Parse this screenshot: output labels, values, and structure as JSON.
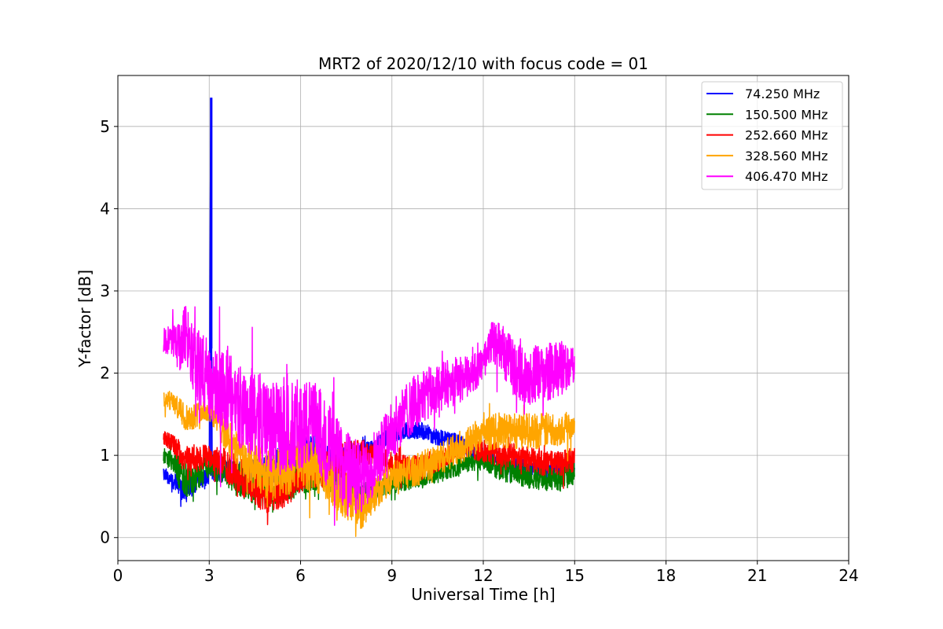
{
  "chart_data": {
    "type": "line",
    "title": "MRT2 of 2020/12/10 with focus code = 01",
    "xlabel": "Universal Time [h]",
    "ylabel": "Y-factor [dB]",
    "xlim": [
      0,
      24
    ],
    "ylim": [
      -0.28,
      5.62
    ],
    "xticks": [
      0,
      3,
      6,
      9,
      12,
      15,
      18,
      21,
      24
    ],
    "yticks": [
      0,
      1,
      2,
      3,
      4,
      5
    ],
    "grid": true,
    "legend_position": "top-right",
    "series": [
      {
        "name": " 74.250 MHz",
        "color": "#0000ff",
        "x": [
          1.5,
          1.8,
          2.0,
          2.2,
          2.5,
          2.8,
          3.0,
          3.05,
          3.08,
          3.1,
          3.3,
          3.6,
          4.0,
          4.5,
          5.0,
          5.5,
          6.0,
          6.5,
          7.0,
          7.5,
          8.0,
          8.5,
          9.0,
          9.5,
          10.0,
          10.5,
          11.0,
          11.5,
          12.0,
          12.5,
          13.0,
          13.5,
          14.0,
          14.5,
          15.0
        ],
        "y": [
          0.78,
          0.7,
          0.62,
          0.55,
          0.65,
          0.72,
          0.75,
          5.35,
          2.3,
          0.8,
          0.78,
          0.82,
          0.8,
          0.75,
          0.8,
          0.9,
          1.0,
          1.05,
          1.0,
          0.95,
          1.05,
          1.12,
          1.28,
          1.3,
          1.3,
          1.22,
          1.18,
          1.1,
          1.0,
          0.95,
          0.9,
          0.85,
          0.8,
          0.85,
          0.88
        ],
        "amp": [
          0.08,
          0.1,
          0.12,
          0.14,
          0.12,
          0.1,
          0.1,
          0.0,
          0.0,
          0.1,
          0.12,
          0.12,
          0.15,
          0.2,
          0.22,
          0.22,
          0.22,
          0.2,
          0.18,
          0.15,
          0.12,
          0.1,
          0.1,
          0.1,
          0.1,
          0.1,
          0.1,
          0.1,
          0.1,
          0.1,
          0.1,
          0.1,
          0.1,
          0.1,
          0.08
        ]
      },
      {
        "name": "150.500 MHz",
        "color": "#008000",
        "x": [
          1.5,
          1.8,
          2.0,
          2.3,
          2.6,
          3.0,
          3.5,
          4.0,
          4.5,
          5.0,
          5.5,
          6.0,
          6.5,
          7.0,
          7.5,
          8.0,
          8.5,
          9.0,
          9.5,
          10.0,
          10.5,
          11.0,
          11.5,
          12.0,
          12.5,
          13.0,
          13.5,
          14.0,
          14.5,
          15.0
        ],
        "y": [
          1.0,
          0.92,
          0.8,
          0.7,
          0.75,
          0.85,
          0.82,
          0.7,
          0.6,
          0.55,
          0.6,
          0.7,
          0.75,
          0.7,
          0.6,
          0.55,
          0.6,
          0.65,
          0.7,
          0.72,
          0.78,
          0.85,
          0.92,
          0.95,
          0.85,
          0.8,
          0.75,
          0.72,
          0.7,
          0.8
        ],
        "amp": [
          0.1,
          0.12,
          0.2,
          0.22,
          0.18,
          0.15,
          0.18,
          0.2,
          0.2,
          0.18,
          0.18,
          0.18,
          0.18,
          0.18,
          0.15,
          0.12,
          0.12,
          0.12,
          0.12,
          0.12,
          0.12,
          0.12,
          0.12,
          0.12,
          0.15,
          0.15,
          0.15,
          0.15,
          0.15,
          0.15
        ]
      },
      {
        "name": "252.660 MHz",
        "color": "#ff0000",
        "x": [
          1.5,
          1.8,
          2.0,
          2.3,
          2.6,
          3.0,
          3.5,
          4.0,
          4.5,
          5.0,
          5.5,
          6.0,
          6.5,
          7.0,
          7.5,
          8.0,
          8.5,
          9.0,
          9.5,
          10.0,
          10.5,
          11.0,
          11.5,
          12.0,
          12.5,
          13.0,
          13.5,
          14.0,
          14.5,
          15.0
        ],
        "y": [
          1.2,
          1.15,
          1.05,
          0.9,
          0.95,
          1.0,
          0.9,
          0.75,
          0.6,
          0.5,
          0.6,
          0.75,
          0.8,
          0.85,
          0.95,
          1.05,
          1.0,
          0.9,
          0.85,
          0.85,
          0.95,
          1.05,
          1.1,
          1.05,
          1.0,
          1.0,
          0.95,
          0.9,
          0.9,
          0.95
        ],
        "amp": [
          0.1,
          0.1,
          0.15,
          0.2,
          0.15,
          0.15,
          0.2,
          0.22,
          0.22,
          0.22,
          0.22,
          0.2,
          0.2,
          0.22,
          0.22,
          0.15,
          0.12,
          0.15,
          0.15,
          0.15,
          0.15,
          0.12,
          0.12,
          0.15,
          0.15,
          0.15,
          0.15,
          0.15,
          0.15,
          0.15
        ]
      },
      {
        "name": "328.560 MHz",
        "color": "#ffa500",
        "x": [
          1.5,
          1.8,
          2.0,
          2.3,
          2.6,
          3.0,
          3.5,
          4.0,
          4.5,
          5.0,
          5.5,
          6.0,
          6.5,
          7.0,
          7.5,
          8.0,
          8.5,
          9.0,
          9.5,
          10.0,
          10.5,
          11.0,
          11.5,
          12.0,
          12.5,
          13.0,
          13.5,
          14.0,
          14.5,
          15.0
        ],
        "y": [
          1.7,
          1.65,
          1.55,
          1.45,
          1.5,
          1.55,
          1.3,
          1.0,
          0.85,
          0.75,
          0.8,
          0.9,
          0.85,
          0.7,
          0.5,
          0.35,
          0.55,
          0.75,
          0.8,
          0.85,
          0.95,
          1.05,
          1.15,
          1.25,
          1.3,
          1.3,
          1.3,
          1.3,
          1.32,
          1.38
        ],
        "amp": [
          0.1,
          0.12,
          0.15,
          0.18,
          0.15,
          0.12,
          0.22,
          0.25,
          0.28,
          0.3,
          0.3,
          0.3,
          0.3,
          0.3,
          0.3,
          0.25,
          0.2,
          0.2,
          0.2,
          0.2,
          0.2,
          0.2,
          0.2,
          0.2,
          0.22,
          0.22,
          0.22,
          0.22,
          0.2,
          0.15
        ]
      },
      {
        "name": "406.470 MHz",
        "color": "#ff00ff",
        "x": [
          1.5,
          1.8,
          2.0,
          2.2,
          2.5,
          2.8,
          3.0,
          3.5,
          4.0,
          4.5,
          5.0,
          5.5,
          6.0,
          6.5,
          7.0,
          7.5,
          8.0,
          8.5,
          9.0,
          9.5,
          10.0,
          10.5,
          11.0,
          11.5,
          12.0,
          12.3,
          12.6,
          13.0,
          13.5,
          14.0,
          14.5,
          15.0
        ],
        "y": [
          2.4,
          2.4,
          2.3,
          2.5,
          2.2,
          2.0,
          1.9,
          1.8,
          1.6,
          1.5,
          1.35,
          1.3,
          1.4,
          1.35,
          1.1,
          0.8,
          0.7,
          1.0,
          1.3,
          1.55,
          1.7,
          1.8,
          1.9,
          1.95,
          2.1,
          2.4,
          2.3,
          2.05,
          1.95,
          2.0,
          2.05,
          2.1
        ],
        "amp": [
          0.15,
          0.2,
          0.3,
          0.35,
          0.45,
          0.45,
          0.45,
          0.5,
          0.55,
          0.55,
          0.55,
          0.55,
          0.55,
          0.55,
          0.5,
          0.5,
          0.45,
          0.4,
          0.35,
          0.35,
          0.35,
          0.3,
          0.3,
          0.25,
          0.2,
          0.25,
          0.3,
          0.35,
          0.35,
          0.35,
          0.35,
          0.2
        ]
      }
    ]
  }
}
